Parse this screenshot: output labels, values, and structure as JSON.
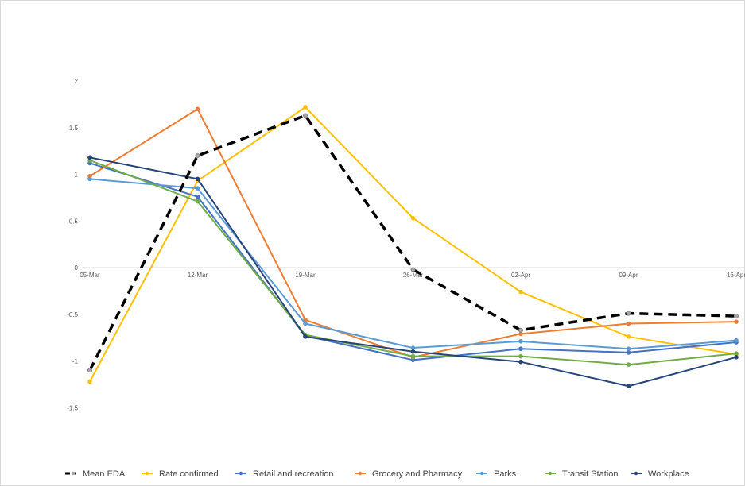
{
  "chart_data": {
    "type": "line",
    "categories": [
      "05-Mar",
      "12-Mar",
      "19-Mar",
      "26-Mar",
      "02-Apr",
      "09-Apr",
      "16-Apr"
    ],
    "ylim": [
      -1.5,
      2
    ],
    "yticks": [
      2,
      1.5,
      1,
      0.5,
      0,
      -0.5,
      -1,
      -1.5
    ],
    "grid": false,
    "legend": "bottom",
    "series": [
      {
        "name": "Mean EDA",
        "color": "#000000",
        "dashed": true,
        "values": [
          -1.1,
          1.2,
          1.63,
          -0.02,
          -0.67,
          -0.49,
          -0.52
        ]
      },
      {
        "name": "Rate confirmed",
        "color": "#ffc000",
        "dashed": false,
        "values": [
          -1.22,
          0.93,
          1.72,
          0.53,
          -0.26,
          -0.74,
          -0.93
        ]
      },
      {
        "name": "Retail and recreation",
        "color": "#4472c4",
        "dashed": false,
        "values": [
          1.12,
          0.76,
          -0.73,
          -0.99,
          -0.87,
          -0.91,
          -0.8
        ]
      },
      {
        "name": "Grocery and Pharmacy",
        "color": "#ed7d31",
        "dashed": false,
        "values": [
          0.98,
          1.7,
          -0.56,
          -0.96,
          -0.71,
          -0.6,
          -0.58
        ]
      },
      {
        "name": "Parks",
        "color": "#5b9bd5",
        "dashed": false,
        "values": [
          0.95,
          0.85,
          -0.6,
          -0.86,
          -0.79,
          -0.87,
          -0.78
        ]
      },
      {
        "name": "Transit Station",
        "color": "#70ad47",
        "dashed": false,
        "values": [
          1.15,
          0.71,
          -0.72,
          -0.95,
          -0.95,
          -1.04,
          -0.92
        ]
      },
      {
        "name": "Workplace",
        "color": "#264478",
        "dashed": false,
        "values": [
          1.18,
          0.95,
          -0.74,
          -0.9,
          -1.01,
          -1.27,
          -0.96
        ]
      }
    ]
  }
}
